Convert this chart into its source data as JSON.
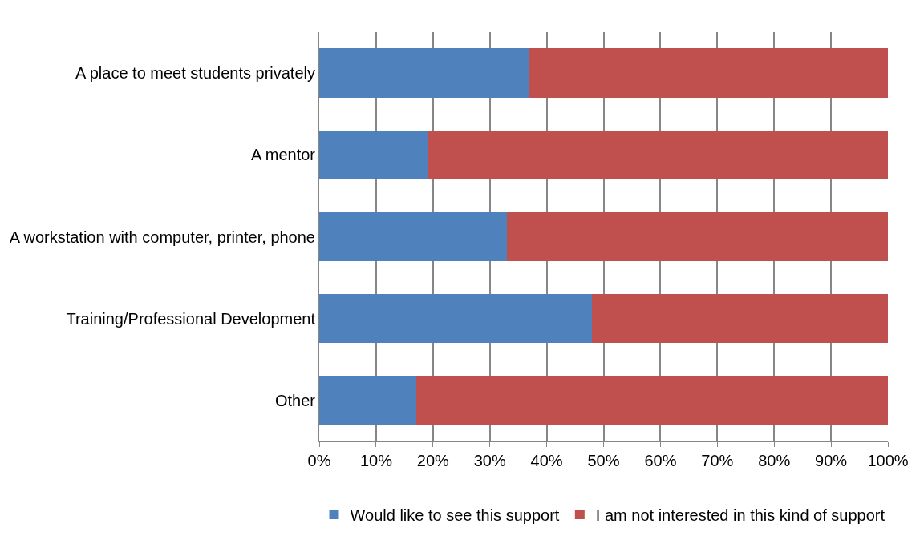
{
  "chart_data": {
    "type": "bar",
    "orientation": "horizontal",
    "stacked": true,
    "categories": [
      "A place to meet students privately",
      "A mentor",
      "A workstation with computer, printer, phone",
      "Training/Professional Development",
      "Other"
    ],
    "series": [
      {
        "name": "Would like to see this support",
        "color": "#4f81bd",
        "values": [
          37,
          19,
          33,
          48,
          17
        ]
      },
      {
        "name": "I am not interested in this kind of support",
        "color": "#c0504d",
        "values": [
          63,
          81,
          67,
          52,
          83
        ]
      }
    ],
    "xlim": [
      0,
      100
    ],
    "xticks": [
      {
        "value": 0,
        "label": "0%"
      },
      {
        "value": 10,
        "label": "10%"
      },
      {
        "value": 20,
        "label": "20%"
      },
      {
        "value": 30,
        "label": "30%"
      },
      {
        "value": 40,
        "label": "40%"
      },
      {
        "value": 50,
        "label": "50%"
      },
      {
        "value": 60,
        "label": "60%"
      },
      {
        "value": 70,
        "label": "70%"
      },
      {
        "value": 80,
        "label": "80%"
      },
      {
        "value": 90,
        "label": "90%"
      },
      {
        "value": 100,
        "label": "100%"
      }
    ],
    "grid": "x",
    "legend": "bottom"
  }
}
